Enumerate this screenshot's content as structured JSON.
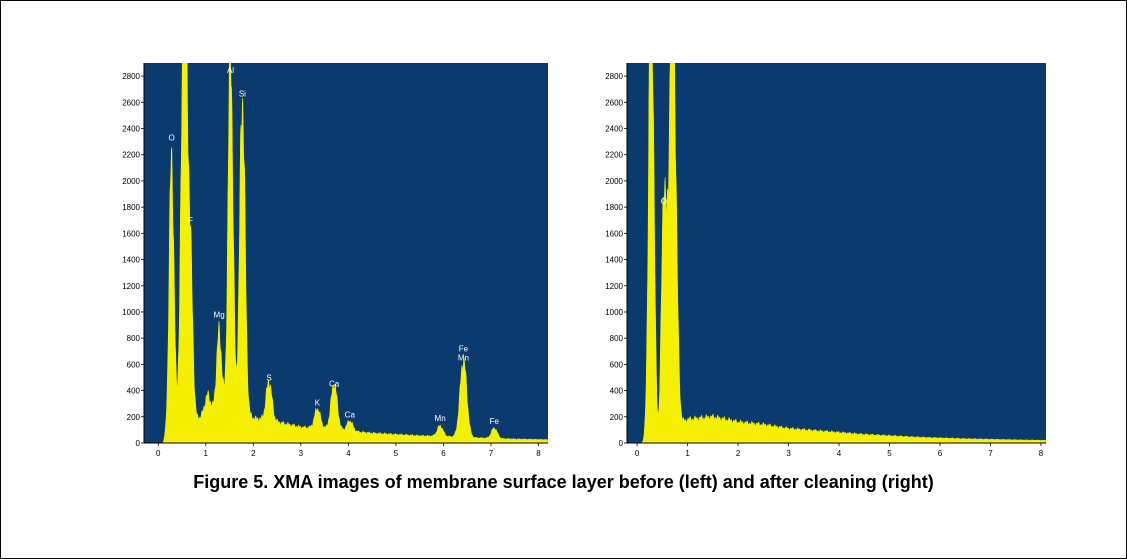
{
  "colors": {
    "background": "#0b3a6e",
    "spectrum": "#f5f000",
    "axis": "#000000"
  },
  "caption": "Figure 5. XMA images of membrane surface layer before (left) and after cleaning (right)",
  "chart_data": [
    {
      "type": "area",
      "xlim": [
        -0.3,
        8.2
      ],
      "ylim": [
        0,
        2900
      ],
      "x_ticks": [
        0,
        1,
        2,
        3,
        4,
        5,
        6,
        7,
        8
      ],
      "y_ticks": [
        0,
        200,
        400,
        600,
        800,
        1000,
        1200,
        1400,
        1600,
        1800,
        2000,
        2200,
        2400,
        2600,
        2800
      ],
      "background": [
        [
          -0.3,
          0
        ],
        [
          0.1,
          0
        ],
        [
          0.15,
          40
        ],
        [
          0.9,
          200
        ],
        [
          1.2,
          230
        ],
        [
          1.6,
          280
        ],
        [
          2.0,
          190
        ],
        [
          2.5,
          160
        ],
        [
          3.0,
          120
        ],
        [
          3.5,
          110
        ],
        [
          4.0,
          90
        ],
        [
          4.5,
          75
        ],
        [
          5.0,
          65
        ],
        [
          5.5,
          55
        ],
        [
          6.0,
          50
        ],
        [
          6.5,
          42
        ],
        [
          7.0,
          35
        ],
        [
          7.5,
          30
        ],
        [
          8.2,
          25
        ]
      ],
      "peaks": [
        {
          "label": "O",
          "x": 0.28,
          "height": 2120,
          "width": 0.05
        },
        {
          "label": "",
          "x": 0.55,
          "height": 3400,
          "width": 0.065
        },
        {
          "label": "F",
          "x": 0.68,
          "height": 1000,
          "width": 0.05
        },
        {
          "label": "",
          "x": 1.04,
          "height": 150,
          "width": 0.06
        },
        {
          "label": "Mg",
          "x": 1.28,
          "height": 600,
          "width": 0.055
        },
        {
          "label": "Al",
          "x": 1.52,
          "height": 2780,
          "width": 0.05
        },
        {
          "label": "Si",
          "x": 1.77,
          "height": 2420,
          "width": 0.055
        },
        {
          "label": "S",
          "x": 2.33,
          "height": 300,
          "width": 0.06
        },
        {
          "label": "K",
          "x": 3.35,
          "height": 150,
          "width": 0.06
        },
        {
          "label": "Ca",
          "x": 3.7,
          "height": 350,
          "width": 0.065
        },
        {
          "label": "Ca",
          "x": 4.03,
          "height": 80,
          "width": 0.06
        },
        {
          "label": "Mn",
          "x": 5.93,
          "height": 80,
          "width": 0.06
        },
        {
          "label": "Fe Mn",
          "x": 6.42,
          "height": 590,
          "width": 0.07
        },
        {
          "label": "Fe",
          "x": 7.07,
          "height": 80,
          "width": 0.06
        }
      ]
    },
    {
      "type": "area",
      "xlim": [
        -0.2,
        8.1
      ],
      "ylim": [
        0,
        2900
      ],
      "x_ticks": [
        0,
        1,
        2,
        3,
        4,
        5,
        6,
        7,
        8
      ],
      "y_ticks": [
        0,
        200,
        400,
        600,
        800,
        1000,
        1200,
        1400,
        1600,
        1800,
        2000,
        2200,
        2400,
        2600,
        2800
      ],
      "background": [
        [
          -0.2,
          0
        ],
        [
          0.15,
          0
        ],
        [
          0.2,
          30
        ],
        [
          0.8,
          130
        ],
        [
          1.0,
          180
        ],
        [
          1.5,
          200
        ],
        [
          2.0,
          160
        ],
        [
          2.5,
          140
        ],
        [
          3.0,
          110
        ],
        [
          3.5,
          95
        ],
        [
          4.0,
          80
        ],
        [
          4.5,
          65
        ],
        [
          5.0,
          55
        ],
        [
          5.5,
          45
        ],
        [
          6.0,
          38
        ],
        [
          6.5,
          32
        ],
        [
          7.0,
          28
        ],
        [
          7.5,
          24
        ],
        [
          8.1,
          20
        ]
      ],
      "peaks": [
        {
          "label": "",
          "x": 0.28,
          "height": 3600,
          "width": 0.05
        },
        {
          "label": "O",
          "x": 0.53,
          "height": 1820,
          "width": 0.045
        },
        {
          "label": "",
          "x": 0.7,
          "height": 3600,
          "width": 0.065
        }
      ]
    }
  ]
}
